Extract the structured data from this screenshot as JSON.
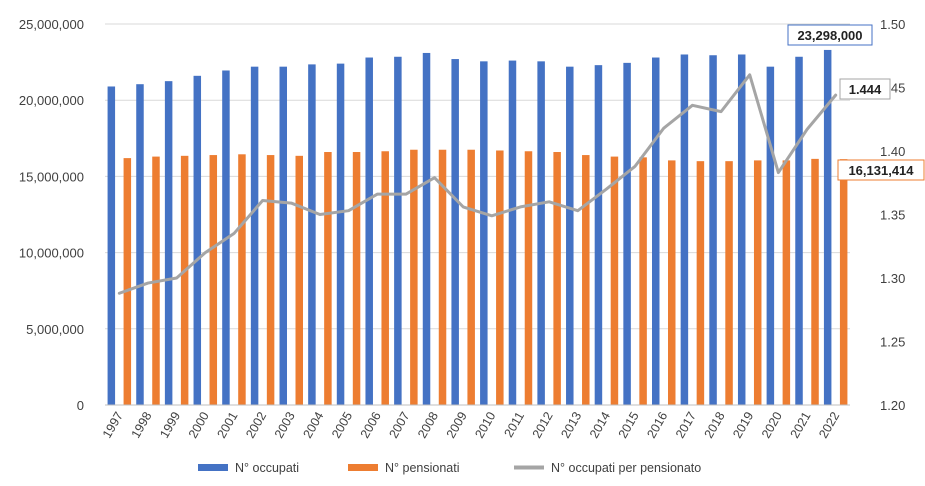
{
  "chart_data": {
    "type": "bar",
    "title": "",
    "categories": [
      "1997",
      "1998",
      "1999",
      "2000",
      "2001",
      "2002",
      "2003",
      "2004",
      "2005",
      "2006",
      "2007",
      "2008",
      "2009",
      "2010",
      "2011",
      "2012",
      "2013",
      "2014",
      "2015",
      "2016",
      "2017",
      "2018",
      "2019",
      "2020",
      "2021",
      "2022"
    ],
    "series": [
      {
        "name": "N° occupati",
        "kind": "bar",
        "axis": "left",
        "color": "#4472C4",
        "values": [
          20900000,
          21050000,
          21250000,
          21600000,
          21950000,
          22200000,
          22200000,
          22350000,
          22400000,
          22800000,
          22850000,
          23100000,
          22700000,
          22550000,
          22600000,
          22550000,
          22200000,
          22300000,
          22450000,
          22800000,
          23000000,
          22950000,
          23000000,
          22200000,
          22850000,
          23298000
        ]
      },
      {
        "name": "N° pensionati",
        "kind": "bar",
        "axis": "left",
        "color": "#ED7D31",
        "values": [
          16200000,
          16300000,
          16350000,
          16400000,
          16450000,
          16400000,
          16350000,
          16600000,
          16600000,
          16650000,
          16750000,
          16750000,
          16750000,
          16700000,
          16650000,
          16600000,
          16400000,
          16300000,
          16250000,
          16050000,
          16000000,
          16000000,
          16050000,
          16050000,
          16150000,
          16131414
        ]
      },
      {
        "name": "N° occupati per pensionato",
        "kind": "line",
        "axis": "right",
        "color": "#A5A5A5",
        "values": [
          1.288,
          1.296,
          1.3,
          1.32,
          1.335,
          1.361,
          1.359,
          1.35,
          1.353,
          1.366,
          1.366,
          1.379,
          1.356,
          1.349,
          1.356,
          1.36,
          1.353,
          1.37,
          1.388,
          1.418,
          1.436,
          1.431,
          1.46,
          1.383,
          1.417,
          1.444
        ]
      }
    ],
    "y_left": {
      "min": 0,
      "max": 25000000,
      "step": 5000000,
      "tick_labels": [
        "0",
        "5,000,000",
        "10,000,000",
        "15,000,000",
        "20,000,000",
        "25,000,000"
      ]
    },
    "y_right": {
      "min": 1.2,
      "max": 1.5,
      "step": 0.05,
      "tick_labels": [
        "1.20",
        "1.25",
        "1.30",
        "1.35",
        "1.40",
        "1.45",
        "1.50"
      ]
    },
    "grid": true,
    "legend_position": "bottom",
    "callouts": [
      {
        "text": "23,298,000",
        "series": 0,
        "index": 25,
        "border": "#4472C4"
      },
      {
        "text": "1.444",
        "series": 2,
        "index": 25,
        "border": "#A5A5A5"
      },
      {
        "text": "16,131,414",
        "series": 1,
        "index": 25,
        "border": "#ED7D31"
      }
    ]
  }
}
